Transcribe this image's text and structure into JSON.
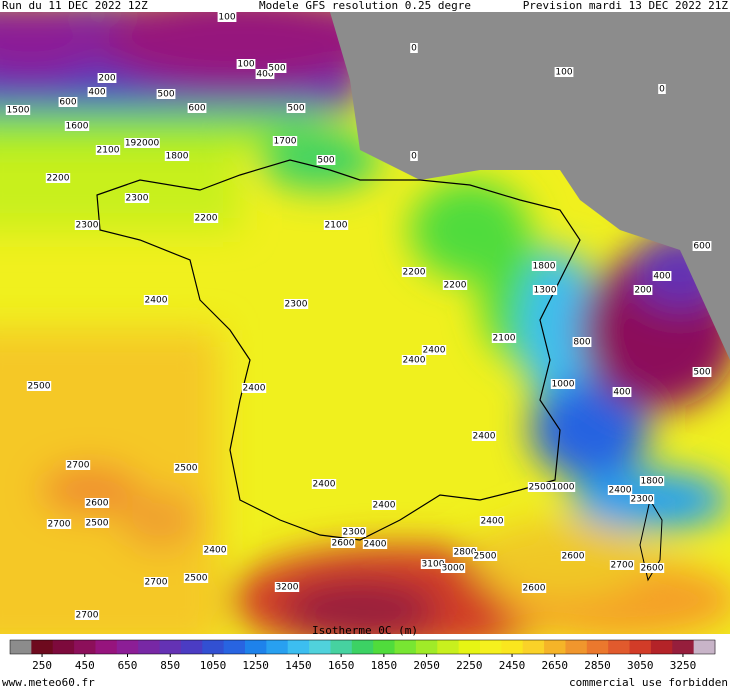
{
  "header": {
    "run": "Run du 11 DEC 2022 12Z",
    "model": "Modele GFS resolution 0.25 degre",
    "forecast": "Prevision mardi 13 DEC 2022 21Z"
  },
  "map": {
    "labels": [
      "100",
      "0",
      "100",
      "400",
      "500",
      "200",
      "400",
      "500",
      "600",
      "600",
      "500",
      "1500",
      "1600",
      "1700",
      "1800",
      "2100",
      "192000",
      "500",
      "0",
      "2200",
      "2300",
      "2200",
      "2300",
      "2100",
      "2200",
      "2200",
      "2400",
      "2300",
      "2100",
      "2400",
      "2400",
      "2500",
      "2400",
      "2400",
      "2700",
      "2500",
      "2600",
      "2700",
      "2500",
      "2400",
      "2400",
      "2400",
      "2300",
      "2600",
      "2400",
      "2400",
      "2800",
      "2500",
      "2600",
      "3100",
      "3000",
      "2700",
      "2500",
      "3200",
      "2600",
      "2700",
      "2700",
      "2600",
      "100",
      "0",
      "1800",
      "1300",
      "800",
      "1000",
      "500",
      "400",
      "2400",
      "2300",
      "1800",
      "2500",
      "1000",
      "600",
      "200",
      "400"
    ]
  },
  "legend": {
    "title": "Isotherme 0C (m)",
    "lim": [
      100,
      3400
    ],
    "ticks": [
      250,
      450,
      650,
      850,
      1050,
      1250,
      1450,
      1650,
      1850,
      2050,
      2250,
      2450,
      2650,
      2850,
      3050,
      3250
    ],
    "colors": [
      "#8c8c8c",
      "#6e0a1e",
      "#7d0a3c",
      "#8c0f5a",
      "#96147d",
      "#8c1e96",
      "#7828a5",
      "#6432b4",
      "#4b3cc3",
      "#3250d2",
      "#2864e1",
      "#1e82eb",
      "#28a0f0",
      "#3cbef0",
      "#50d2dc",
      "#46d2a0",
      "#3cd264",
      "#50dc3c",
      "#78e632",
      "#a0eb28",
      "#c8f01e",
      "#e6f514",
      "#f5f01e",
      "#fae61e",
      "#fad228",
      "#f5b428",
      "#f0962d",
      "#eb782d",
      "#e15a2d",
      "#d23c28",
      "#b42328",
      "#961e3c",
      "#c8b4c8"
    ]
  },
  "footer": {
    "source": "www.meteo60.fr",
    "notice": "commercial use forbidden"
  }
}
